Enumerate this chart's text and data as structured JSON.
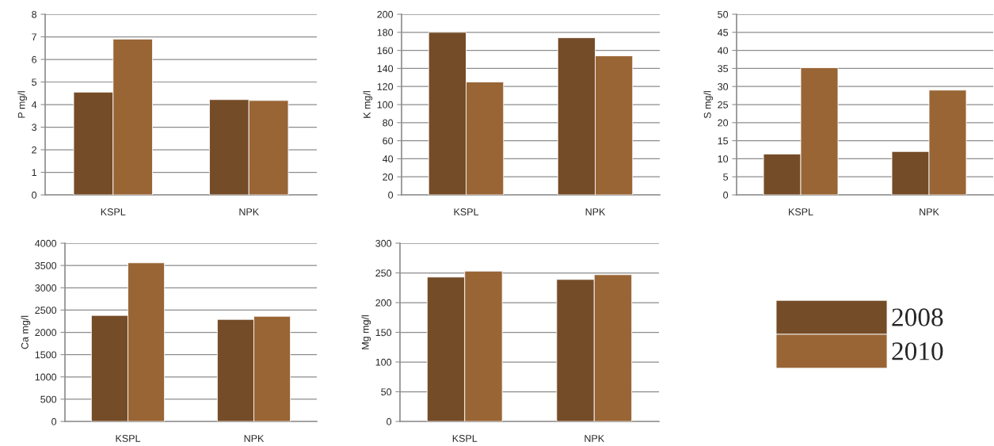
{
  "chart_data": [
    {
      "type": "bar",
      "ylabel": "P mg/l",
      "categories": [
        "KSPL",
        "NPK"
      ],
      "ylim": [
        0,
        8
      ],
      "yticks": [
        0,
        1,
        2,
        3,
        4,
        5,
        6,
        7,
        8
      ],
      "grid": "y",
      "legend": "bottom right",
      "series": [
        {
          "name": "2008",
          "color": "#754c28",
          "values": [
            4.55,
            4.22
          ]
        },
        {
          "name": "2010",
          "color": "#996535",
          "values": [
            6.9,
            4.18
          ]
        }
      ]
    },
    {
      "type": "bar",
      "ylabel": "K mg/l",
      "categories": [
        "KSPL",
        "NPK"
      ],
      "ylim": [
        0,
        200
      ],
      "yticks": [
        0,
        20,
        40,
        60,
        80,
        100,
        120,
        140,
        160,
        180,
        200
      ],
      "grid": "y",
      "series": [
        {
          "name": "2008",
          "color": "#754c28",
          "values": [
            180,
            174
          ]
        },
        {
          "name": "2010",
          "color": "#996535",
          "values": [
            125,
            154
          ]
        }
      ]
    },
    {
      "type": "bar",
      "ylabel": "S mg/l",
      "categories": [
        "KSPL",
        "NPK"
      ],
      "ylim": [
        0,
        50
      ],
      "yticks": [
        0,
        5,
        10,
        15,
        20,
        25,
        30,
        35,
        40,
        45,
        50
      ],
      "grid": "y",
      "series": [
        {
          "name": "2008",
          "color": "#754c28",
          "values": [
            11.3,
            12
          ]
        },
        {
          "name": "2010",
          "color": "#996535",
          "values": [
            35.2,
            29
          ]
        }
      ]
    },
    {
      "type": "bar",
      "ylabel": "Ca mg/l",
      "categories": [
        "KSPL",
        "NPK"
      ],
      "ylim": [
        0,
        4000
      ],
      "yticks": [
        0,
        500,
        1000,
        1500,
        2000,
        2500,
        3000,
        3500,
        4000
      ],
      "grid": "y",
      "series": [
        {
          "name": "2008",
          "color": "#754c28",
          "values": [
            2380,
            2290
          ]
        },
        {
          "name": "2010",
          "color": "#996535",
          "values": [
            3560,
            2360
          ]
        }
      ]
    },
    {
      "type": "bar",
      "ylabel": "Mg mg/l",
      "categories": [
        "KSPL",
        "NPK"
      ],
      "ylim": [
        0,
        300
      ],
      "yticks": [
        0,
        50,
        100,
        150,
        200,
        250,
        300
      ],
      "grid": "y",
      "series": [
        {
          "name": "2008",
          "color": "#754c28",
          "values": [
            243,
            239
          ]
        },
        {
          "name": "2010",
          "color": "#996535",
          "values": [
            253,
            247
          ]
        }
      ]
    }
  ]
}
